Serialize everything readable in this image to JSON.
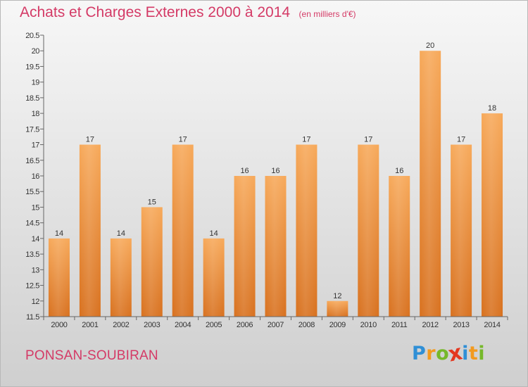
{
  "title": "Achats et Charges Externes 2000 à 2014",
  "subtitle": "(en milliers d'€)",
  "location": "PONSAN-SOUBIRAN",
  "brand": {
    "letters": [
      "P",
      "r",
      "o",
      "x",
      "i",
      "t",
      "i"
    ],
    "colors": [
      "#2f8fd6",
      "#f29a1e",
      "#76b82a",
      "#e4371f",
      "#2f8fd6",
      "#f29a1e",
      "#76b82a"
    ]
  },
  "colors": {
    "bar_top": "#f7a95a",
    "bar_bottom": "#d8711f",
    "title": "#d43a66"
  },
  "chart_data": {
    "type": "bar",
    "categories": [
      "2000",
      "2001",
      "2002",
      "2003",
      "2004",
      "2005",
      "2006",
      "2007",
      "2008",
      "2009",
      "2010",
      "2011",
      "2012",
      "2013",
      "2014"
    ],
    "values": [
      14,
      17,
      14,
      15,
      17,
      14,
      16,
      16,
      17,
      12,
      17,
      16,
      20,
      17,
      18
    ],
    "title": "Achats et Charges Externes 2000 à 2014",
    "ylim": [
      11.5,
      20.5
    ],
    "yticks": [
      "11.5",
      "12",
      "12.5",
      "13",
      "13.5",
      "14",
      "14.5",
      "15",
      "15.5",
      "16",
      "16.5",
      "17",
      "17.5",
      "18",
      "18.5",
      "19",
      "19.5",
      "20",
      "20.5"
    ],
    "grid": false
  }
}
